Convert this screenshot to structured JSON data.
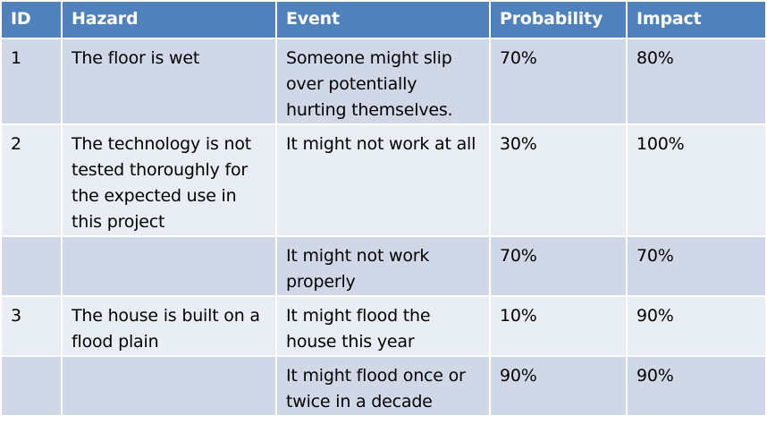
{
  "table": {
    "headers": [
      "ID",
      "Hazard",
      "Event",
      "Probability",
      "Impact"
    ],
    "rows": [
      [
        "1",
        "The floor is wet",
        "Someone might slip over potentially hurting themselves.",
        "70%",
        "80%"
      ],
      [
        "2",
        "The technology is not tested thoroughly for the expected use in this project",
        "It might not work at all",
        "30%",
        "100%"
      ],
      [
        "",
        "",
        "It might not work properly",
        "70%",
        "70%"
      ],
      [
        "3",
        "The house is built on a flood plain",
        "It might flood the house this year",
        "10%",
        "90%"
      ],
      [
        "",
        "",
        "It might flood once or twice in a decade",
        "90%",
        "90%"
      ]
    ]
  },
  "colors": {
    "header_bg": "#4f81bd",
    "row_dark_bg": "#d0d8e8",
    "row_light_bg": "#e9edf4"
  }
}
